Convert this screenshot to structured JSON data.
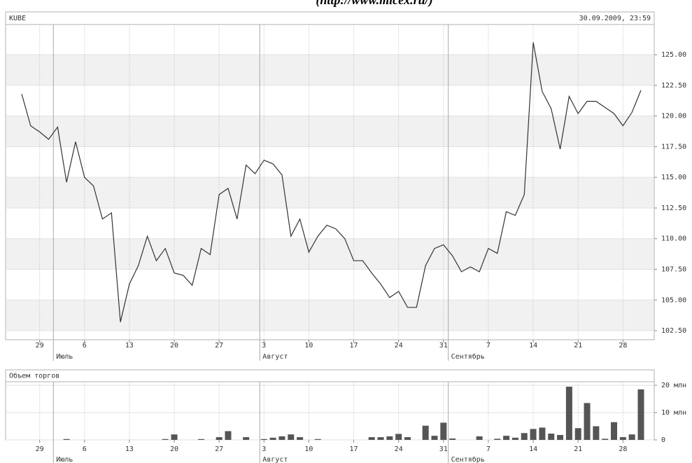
{
  "header": {
    "source": "(http://www.micex.ru/)"
  },
  "chart_data": [
    {
      "type": "line",
      "title": "KUBE",
      "date": "30.09.2009, 23:59",
      "categories": [
        null,
        null,
        "29",
        null,
        null,
        null,
        null,
        "6",
        null,
        null,
        null,
        null,
        "13",
        null,
        null,
        null,
        null,
        "20",
        null,
        null,
        null,
        null,
        "27",
        null,
        null,
        null,
        null,
        "3",
        null,
        null,
        null,
        null,
        "10",
        null,
        null,
        null,
        null,
        "17",
        null,
        null,
        null,
        null,
        "24",
        null,
        null,
        null,
        null,
        "31",
        null,
        null,
        null,
        null,
        "7",
        null,
        null,
        null,
        null,
        "14",
        null,
        null,
        null,
        null,
        "21",
        null,
        null,
        null,
        null,
        "28",
        null,
        null
      ],
      "months": [
        null,
        null,
        null,
        null,
        "Июль",
        null,
        null,
        null,
        null,
        null,
        null,
        null,
        null,
        null,
        null,
        null,
        null,
        null,
        null,
        null,
        null,
        null,
        null,
        null,
        null,
        null,
        null,
        "Август",
        null,
        null,
        null,
        null,
        null,
        null,
        null,
        null,
        null,
        null,
        null,
        null,
        null,
        null,
        null,
        null,
        null,
        null,
        null,
        null,
        "Сентябрь",
        null,
        null,
        null,
        null,
        null,
        null,
        null,
        null,
        null,
        null,
        null,
        null,
        null,
        null,
        null,
        null,
        null,
        null,
        null,
        null,
        null
      ],
      "series": [
        {
          "name": "KUBE",
          "color": "#333333",
          "values": [
            121.8,
            119.2,
            118.7,
            118.1,
            119.1,
            114.6,
            117.9,
            115.0,
            114.3,
            111.6,
            112.1,
            103.2,
            106.3,
            107.8,
            110.2,
            108.2,
            109.2,
            107.2,
            107.0,
            106.2,
            109.2,
            108.7,
            113.6,
            114.1,
            111.6,
            116.0,
            115.3,
            116.4,
            116.1,
            115.2,
            110.2,
            111.6,
            108.9,
            110.2,
            111.1,
            110.8,
            110.0,
            108.2,
            108.2,
            107.2,
            106.3,
            105.2,
            105.7,
            104.4,
            104.4,
            107.8,
            109.2,
            109.5,
            108.6,
            107.3,
            107.7,
            107.3,
            109.2,
            108.8,
            112.2,
            111.9,
            113.6,
            126.0,
            122.0,
            120.6,
            117.3,
            121.6,
            120.2,
            121.2,
            121.2,
            120.7,
            120.2,
            119.2,
            120.3,
            122.1
          ]
        }
      ],
      "ylim": [
        101.76,
        127.46
      ],
      "yticks": [
        {
          "value": 102.5,
          "label": "102.50"
        },
        {
          "value": 105,
          "label": "105.00"
        },
        {
          "value": 107.5,
          "label": "107.50"
        },
        {
          "value": 110,
          "label": "110.00"
        },
        {
          "value": 112.5,
          "label": "112.50"
        },
        {
          "value": 115,
          "label": "115.00"
        },
        {
          "value": 117.5,
          "label": "117.50"
        },
        {
          "value": 120,
          "label": "120.00"
        },
        {
          "value": 122.5,
          "label": "122.50"
        },
        {
          "value": 125,
          "label": "125.00"
        }
      ],
      "bands": true
    },
    {
      "type": "bar",
      "title": "Объем торгов",
      "categories": [
        null,
        null,
        "29",
        null,
        null,
        null,
        null,
        "6",
        null,
        null,
        null,
        null,
        "13",
        null,
        null,
        null,
        null,
        "20",
        null,
        null,
        null,
        null,
        "27",
        null,
        null,
        null,
        null,
        "3",
        null,
        null,
        null,
        null,
        "10",
        null,
        null,
        null,
        null,
        "17",
        null,
        null,
        null,
        null,
        "24",
        null,
        null,
        null,
        null,
        "31",
        null,
        null,
        null,
        null,
        "7",
        null,
        null,
        null,
        null,
        "14",
        null,
        null,
        null,
        null,
        "21",
        null,
        null,
        null,
        null,
        "28",
        null,
        null
      ],
      "months": [
        null,
        null,
        null,
        null,
        "Июль",
        null,
        null,
        null,
        null,
        null,
        null,
        null,
        null,
        null,
        null,
        null,
        null,
        null,
        null,
        null,
        null,
        null,
        null,
        null,
        null,
        null,
        null,
        "Август",
        null,
        null,
        null,
        null,
        null,
        null,
        null,
        null,
        null,
        null,
        null,
        null,
        null,
        null,
        null,
        null,
        null,
        null,
        null,
        null,
        "Сентябрь",
        null,
        null,
        null,
        null,
        null,
        null,
        null,
        null,
        null,
        null,
        null,
        null,
        null,
        null,
        null,
        null,
        null,
        null,
        null,
        null,
        null
      ],
      "color": "#555555",
      "values": [
        0,
        0,
        0,
        0,
        0,
        0.3,
        0,
        0,
        0,
        0,
        0,
        0,
        0,
        0,
        0,
        0,
        0.3,
        2.0,
        0,
        0,
        0.3,
        0,
        1.0,
        3.2,
        0,
        1.0,
        0,
        0.3,
        0.8,
        1.3,
        2.0,
        1.0,
        0,
        0.3,
        0,
        0,
        0,
        0,
        0,
        1.0,
        1.0,
        1.3,
        2.2,
        1.0,
        0,
        5.2,
        1.5,
        6.3,
        0.5,
        0,
        0,
        1.3,
        0,
        0.4,
        1.5,
        0.8,
        2.5,
        4.0,
        4.5,
        2.3,
        1.8,
        19.5,
        4.3,
        13.5,
        5.0,
        0.4,
        6.5,
        1.0,
        2.0,
        18.5
      ],
      "ylim": [
        0,
        21.3
      ],
      "yticks": [
        0,
        {
          "value": 10,
          "label": "10 млн"
        },
        {
          "value": 20,
          "label": "20 млн"
        }
      ],
      "bands": false
    }
  ]
}
